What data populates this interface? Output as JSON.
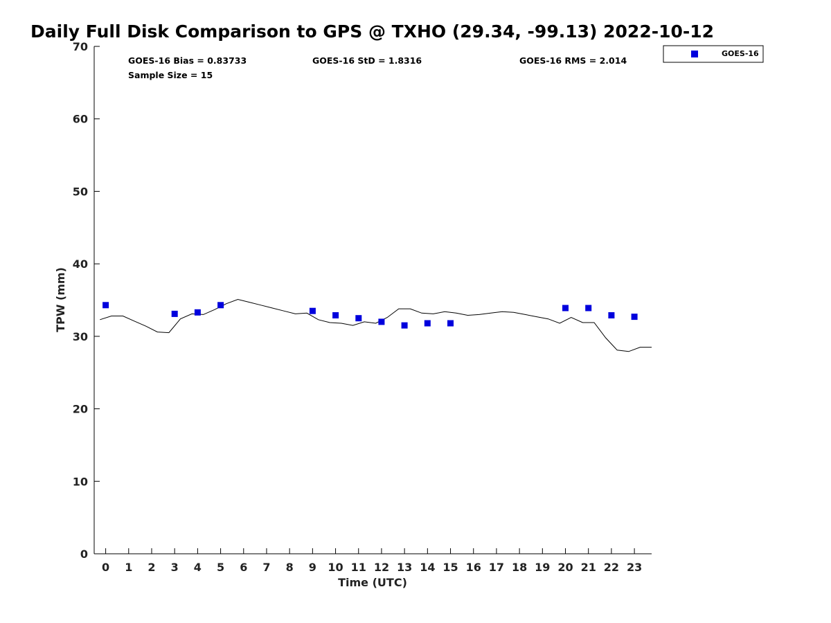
{
  "chart_data": {
    "type": "scatter",
    "title": "Daily Full Disk Comparison to GPS @ TXHO (29.34, -99.13) 2022-10-12",
    "xlabel": "Time (UTC)",
    "ylabel": "TPW (mm)",
    "xlim": [
      -0.5,
      23.75
    ],
    "ylim": [
      0,
      70
    ],
    "x_ticks": [
      0,
      1,
      2,
      3,
      4,
      5,
      6,
      7,
      8,
      9,
      10,
      11,
      12,
      13,
      14,
      15,
      16,
      17,
      18,
      19,
      20,
      21,
      22,
      23
    ],
    "y_ticks": [
      0,
      10,
      20,
      30,
      40,
      50,
      60,
      70
    ],
    "grid": false,
    "legend_position": "top-right",
    "stats": [
      {
        "label": "GOES-16 Bias = 0.83733"
      },
      {
        "label": "GOES-16 StD = 1.8316"
      },
      {
        "label": "GOES-16 RMS = 2.014"
      },
      {
        "label": "Sample Size = 15"
      }
    ],
    "series": [
      {
        "name": "GOES-16",
        "kind": "scatter",
        "color": "#0000dd",
        "marker": "square",
        "x": [
          0,
          3,
          4,
          5,
          9,
          10,
          11,
          12,
          13,
          14,
          15,
          20,
          21,
          22,
          23
        ],
        "y": [
          34.3,
          33.1,
          33.3,
          34.3,
          33.5,
          32.9,
          32.5,
          32.0,
          31.5,
          31.8,
          31.8,
          33.9,
          33.9,
          32.9,
          32.7
        ]
      },
      {
        "kind": "line",
        "color": "#000000",
        "x": [
          -0.25,
          0.25,
          0.75,
          1.25,
          1.75,
          2.25,
          2.75,
          3.25,
          3.75,
          4.25,
          4.75,
          5.25,
          5.75,
          6.25,
          6.75,
          7.25,
          7.75,
          8.25,
          8.75,
          9.25,
          9.75,
          10.25,
          10.75,
          11.25,
          11.75,
          12.25,
          12.75,
          13.25,
          13.75,
          14.25,
          14.75,
          15.25,
          15.75,
          16.25,
          16.75,
          17.25,
          17.75,
          18.25,
          18.75,
          19.25,
          19.75,
          20.25,
          20.75,
          21.25,
          21.75,
          22.25,
          22.75,
          23.25,
          23.75
        ],
        "y": [
          32.3,
          32.8,
          32.8,
          32.1,
          31.4,
          30.6,
          30.5,
          32.4,
          33.1,
          33.0,
          33.7,
          34.5,
          35.1,
          34.7,
          34.3,
          33.9,
          33.5,
          33.1,
          33.2,
          32.3,
          31.9,
          31.8,
          31.5,
          32.0,
          31.8,
          32.6,
          33.8,
          33.8,
          33.2,
          33.1,
          33.4,
          33.2,
          32.9,
          33.0,
          33.2,
          33.4,
          33.3,
          33.0,
          32.7,
          32.4,
          31.8,
          32.6,
          31.9,
          31.9,
          29.8,
          28.1,
          27.9,
          28.5,
          28.5
        ]
      }
    ]
  }
}
